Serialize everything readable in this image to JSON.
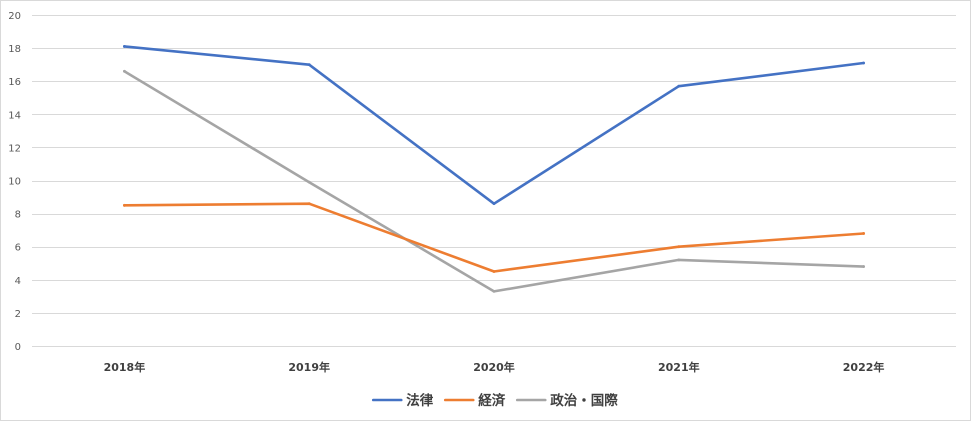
{
  "chart_data": {
    "type": "line",
    "title": "",
    "xlabel": "",
    "ylabel": "",
    "categories": [
      "2018年",
      "2019年",
      "2020年",
      "2021年",
      "2022年"
    ],
    "ylim": [
      0,
      20
    ],
    "yticks": [
      0,
      2,
      4,
      6,
      8,
      10,
      12,
      14,
      16,
      18,
      20
    ],
    "grid": true,
    "legend_position": "bottom",
    "series": [
      {
        "name": "法律",
        "color": "#4472C4",
        "values": [
          18.1,
          17.0,
          8.6,
          15.7,
          17.1
        ]
      },
      {
        "name": "経済",
        "color": "#ED7D31",
        "values": [
          8.5,
          8.6,
          4.5,
          6.0,
          6.8
        ]
      },
      {
        "name": "政治・国際",
        "color": "#A5A5A5",
        "values": [
          16.6,
          9.9,
          3.3,
          5.2,
          4.8
        ]
      }
    ]
  }
}
